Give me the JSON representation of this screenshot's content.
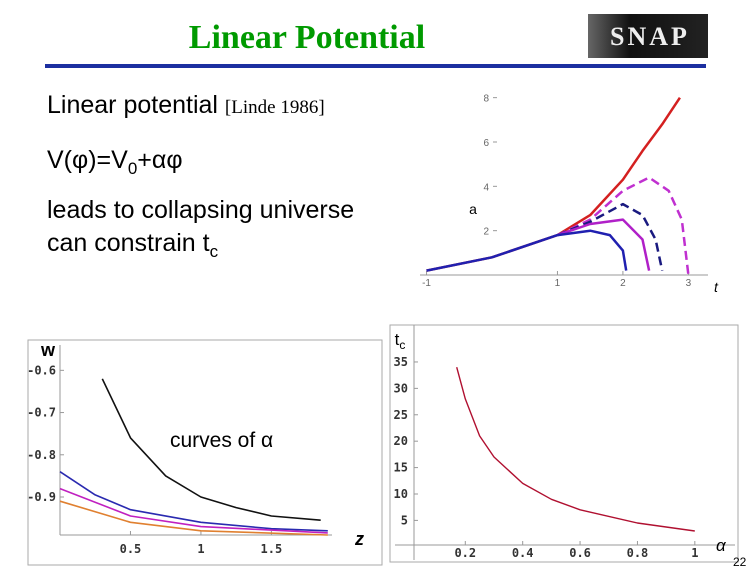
{
  "header": {
    "title": "Linear Potential",
    "logo": "SNAP"
  },
  "body": {
    "line1": "Linear potential",
    "citation": "[Linde 1986]",
    "formula": {
      "main": "V(φ)=V",
      "sub": "0",
      "rest": "+αφ"
    },
    "line3": "leads to collapsing universe",
    "line4": {
      "main": "can constrain t",
      "sub": "c"
    },
    "annotation": "curves of α"
  },
  "page_number": "22",
  "chart_data": [
    {
      "type": "line",
      "ylabel": "a",
      "xlabel": "t",
      "xlim": [
        -1.1,
        3.3
      ],
      "ylim": [
        0,
        8.3
      ],
      "xticks": [
        -1,
        1,
        2,
        3
      ],
      "yticks": [
        2,
        4,
        6,
        8
      ],
      "series": [
        {
          "color": "#d42020",
          "dash": false,
          "x": [
            -1,
            0,
            1,
            1.5,
            2,
            2.3,
            2.6,
            2.87
          ],
          "values": [
            0.2,
            0.8,
            1.8,
            2.7,
            4.3,
            5.6,
            6.8,
            8
          ]
        },
        {
          "color": "#c030d0",
          "dash": true,
          "x": [
            1,
            1.5,
            2,
            2.4,
            2.7,
            2.9,
            3
          ],
          "values": [
            1.8,
            2.5,
            3.8,
            4.4,
            3.8,
            2.5,
            0
          ]
        },
        {
          "color": "#1a1a80",
          "dash": true,
          "x": [
            1,
            1.5,
            2,
            2.3,
            2.5,
            2.6
          ],
          "values": [
            1.8,
            2.4,
            3.2,
            2.7,
            1.6,
            0.2
          ]
        },
        {
          "color": "#b020c8",
          "dash": false,
          "x": [
            1,
            1.5,
            2,
            2.3,
            2.4
          ],
          "values": [
            1.8,
            2.3,
            2.5,
            1.6,
            0.2
          ]
        },
        {
          "color": "#2020b0",
          "dash": false,
          "x": [
            -1,
            0,
            1,
            1.5,
            1.8,
            2,
            2.05
          ],
          "values": [
            0.2,
            0.8,
            1.8,
            2,
            1.8,
            1.1,
            0.2
          ]
        }
      ]
    },
    {
      "type": "line",
      "ylabel": "w",
      "xlabel": "z",
      "xlim": [
        0,
        1.93
      ],
      "ylim": [
        -0.99,
        -0.54
      ],
      "xticks": [
        0.5,
        1,
        1.5
      ],
      "yticks": [
        -0.6,
        -0.7,
        -0.8,
        -0.9
      ],
      "series": [
        {
          "color": "#111111",
          "dash": false,
          "x": [
            0.3,
            0.5,
            0.75,
            1,
            1.25,
            1.5,
            1.85
          ],
          "values": [
            -0.62,
            -0.76,
            -0.85,
            -0.9,
            -0.925,
            -0.945,
            -0.955
          ]
        },
        {
          "color": "#2a2ab0",
          "dash": false,
          "x": [
            0,
            0.25,
            0.5,
            1,
            1.5,
            1.9
          ],
          "values": [
            -0.84,
            -0.895,
            -0.93,
            -0.96,
            -0.975,
            -0.98
          ]
        },
        {
          "color": "#c020c0",
          "dash": false,
          "x": [
            0,
            0.5,
            1,
            1.9
          ],
          "values": [
            -0.88,
            -0.945,
            -0.97,
            -0.985
          ]
        },
        {
          "color": "#e08030",
          "dash": false,
          "x": [
            0,
            0.5,
            1,
            1.9
          ],
          "values": [
            -0.91,
            -0.96,
            -0.98,
            -0.99
          ]
        }
      ]
    },
    {
      "type": "line",
      "ylabel": "t",
      "ylabel_sub": "c",
      "xlabel": "α",
      "xlim": [
        -0.045,
        1.14
      ],
      "ylim": [
        -2.5,
        42
      ],
      "xticks": [
        0.2,
        0.4,
        0.6,
        0.8,
        1
      ],
      "yticks": [
        5,
        10,
        15,
        20,
        25,
        30,
        35
      ],
      "series": [
        {
          "color": "#b01030",
          "dash": false,
          "x": [
            0.17,
            0.2,
            0.25,
            0.3,
            0.4,
            0.5,
            0.6,
            0.8,
            1
          ],
          "values": [
            34,
            28,
            21,
            17,
            12,
            9,
            7,
            4.5,
            3
          ]
        }
      ]
    }
  ]
}
